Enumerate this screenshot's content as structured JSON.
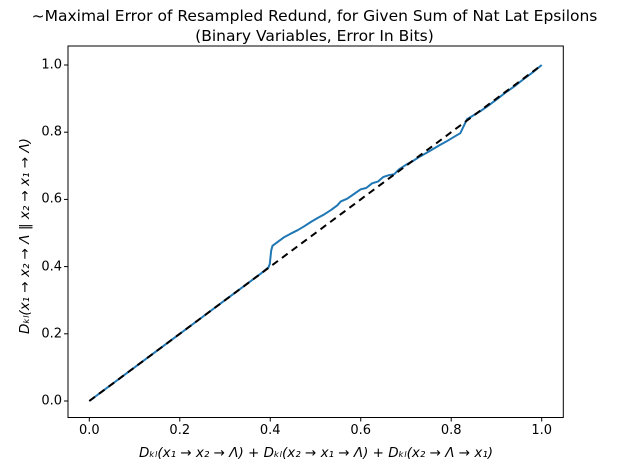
{
  "figure": {
    "background": "#ffffff",
    "title_lines": [
      "~Maximal Error of Resampled Redund, for Given Sum of Nat Lat Epsilons",
      "(Binary Variables, Error In Bits)"
    ]
  },
  "chart_data": {
    "type": "line",
    "title": "~Maximal Error of Resampled Redund, for Given Sum of Nat Lat Epsilons (Binary Variables, Error In Bits)",
    "xlabel": "Dₖₗ(x₁ → x₂ → Λ) + Dₖₗ(x₂ → x₁ → Λ) + Dₖₗ(x₂ → Λ → x₁)",
    "ylabel": "Dₖₗ(x₁ → x₂ → Λ ‖ x₂ → x₁ → Λ)",
    "xlim": [
      -0.05,
      1.05
    ],
    "ylim": [
      -0.05,
      1.057
    ],
    "grid": false,
    "legend": "none",
    "xticks": [
      0.0,
      0.2,
      0.4,
      0.6,
      0.8,
      1.0
    ],
    "yticks": [
      0.0,
      0.2,
      0.4,
      0.6,
      0.8,
      1.0
    ],
    "xtick_labels": [
      "0.0",
      "0.2",
      "0.4",
      "0.6",
      "0.8",
      "1.0"
    ],
    "ytick_labels": [
      "0.0",
      "0.2",
      "0.4",
      "0.6",
      "0.8",
      "1.0"
    ],
    "axis_color": "#000000",
    "series": [
      {
        "name": "resampled-redundancy-error",
        "color": "#1f77b4",
        "style": "solid",
        "width": 2,
        "points": [
          [
            0.0,
            0.0
          ],
          [
            0.05,
            0.05
          ],
          [
            0.1,
            0.1
          ],
          [
            0.15,
            0.15
          ],
          [
            0.2,
            0.2
          ],
          [
            0.25,
            0.25
          ],
          [
            0.3,
            0.3
          ],
          [
            0.35,
            0.35
          ],
          [
            0.38,
            0.38
          ],
          [
            0.396,
            0.398
          ],
          [
            0.399,
            0.408
          ],
          [
            0.402,
            0.448
          ],
          [
            0.405,
            0.462
          ],
          [
            0.415,
            0.472
          ],
          [
            0.43,
            0.487
          ],
          [
            0.445,
            0.498
          ],
          [
            0.46,
            0.508
          ],
          [
            0.475,
            0.52
          ],
          [
            0.49,
            0.533
          ],
          [
            0.505,
            0.545
          ],
          [
            0.52,
            0.556
          ],
          [
            0.535,
            0.569
          ],
          [
            0.548,
            0.582
          ],
          [
            0.556,
            0.594
          ],
          [
            0.57,
            0.602
          ],
          [
            0.585,
            0.616
          ],
          [
            0.6,
            0.63
          ],
          [
            0.612,
            0.634
          ],
          [
            0.625,
            0.648
          ],
          [
            0.638,
            0.653
          ],
          [
            0.65,
            0.667
          ],
          [
            0.662,
            0.672
          ],
          [
            0.674,
            0.675
          ],
          [
            0.685,
            0.69
          ],
          [
            0.7,
            0.703
          ],
          [
            0.715,
            0.714
          ],
          [
            0.73,
            0.727
          ],
          [
            0.745,
            0.738
          ],
          [
            0.76,
            0.75
          ],
          [
            0.775,
            0.762
          ],
          [
            0.79,
            0.773
          ],
          [
            0.805,
            0.785
          ],
          [
            0.82,
            0.797
          ],
          [
            0.835,
            0.839
          ],
          [
            0.85,
            0.851
          ],
          [
            0.865,
            0.863
          ],
          [
            0.88,
            0.877
          ],
          [
            0.9,
            0.897
          ],
          [
            0.92,
            0.918
          ],
          [
            0.94,
            0.937
          ],
          [
            0.96,
            0.958
          ],
          [
            0.98,
            0.978
          ],
          [
            1.0,
            1.0
          ]
        ]
      },
      {
        "name": "identity-reference",
        "color": "#000000",
        "style": "dashed",
        "width": 2,
        "points": [
          [
            0.0,
            0.0
          ],
          [
            1.0,
            1.0
          ]
        ]
      }
    ]
  }
}
